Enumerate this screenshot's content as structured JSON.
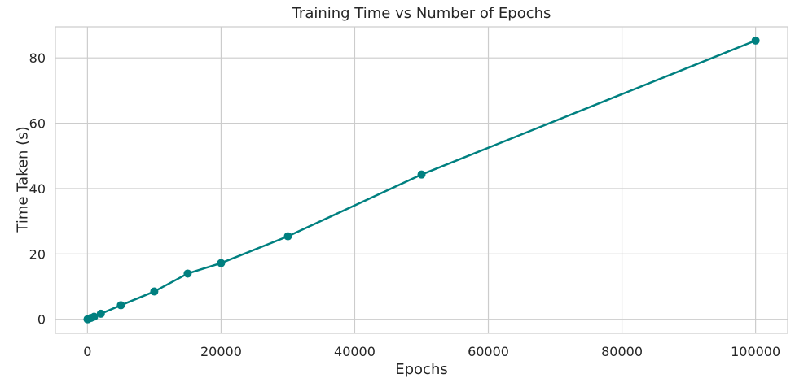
{
  "chart_data": {
    "type": "line",
    "title": "Training Time vs Number of Epochs",
    "xlabel": "Epochs",
    "ylabel": "Time Taken (s)",
    "xlim": [
      -4800,
      104800
    ],
    "ylim": [
      -4.3,
      89.5
    ],
    "xticks": [
      0,
      20000,
      40000,
      60000,
      80000,
      100000
    ],
    "yticks": [
      0,
      20,
      40,
      60,
      80
    ],
    "grid": true,
    "legend": "none",
    "series": [
      {
        "color": "#008080",
        "x": [
          10,
          50,
          100,
          500,
          1000,
          2000,
          5000,
          10000,
          15000,
          20000,
          30000,
          50000,
          100000
        ],
        "y": [
          0.01,
          0.05,
          0.1,
          0.4,
          0.8,
          1.7,
          4.3,
          8.5,
          14.0,
          17.2,
          25.4,
          44.3,
          85.3
        ]
      }
    ]
  }
}
